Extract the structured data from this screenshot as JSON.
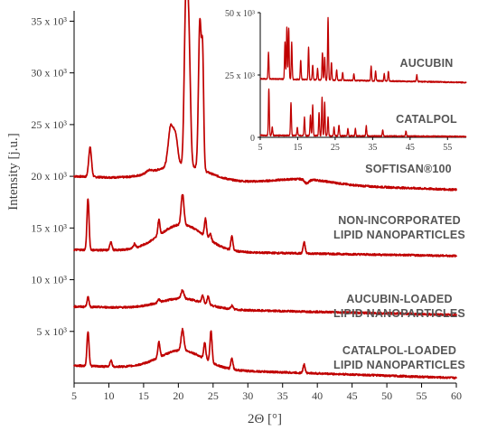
{
  "chart_data": [
    {
      "type": "line",
      "xlabel": "2Θ [°]",
      "ylabel": "Intensity [j.u.]",
      "xlim": [
        5,
        60
      ],
      "ylim": [
        0,
        36000
      ],
      "x_ticks": [
        "5",
        "10",
        "15",
        "20",
        "25",
        "30",
        "35",
        "40",
        "45",
        "50",
        "55",
        "60"
      ],
      "y_ticks": [
        "5 x 10³",
        "10 x 10³",
        "15 x 10³",
        "20 x 10³",
        "25 x 10³",
        "30 x 10³",
        "35 x 10³"
      ],
      "y_tick_values": [
        5000,
        10000,
        15000,
        20000,
        25000,
        30000,
        35000
      ],
      "color": "#c00000",
      "series": [
        {
          "name": "SOFTISAN®100",
          "label_lines": [
            "SOFTISAN®100"
          ],
          "baseline_start": 20000,
          "baseline_end": 18700,
          "peaks": [
            [
              7.3,
              22800,
              0.2
            ],
            [
              15.8,
              20600,
              0.4
            ],
            [
              18.9,
              24800,
              0.35
            ],
            [
              19.6,
              23800,
              0.3
            ],
            [
              21.0,
              32500,
              0.2
            ],
            [
              21.3,
              32900,
              0.2
            ],
            [
              21.6,
              29000,
              0.2
            ],
            [
              23.1,
              35000,
              0.2
            ],
            [
              23.5,
              31000,
              0.15
            ],
            [
              38.5,
              19300,
              0.3
            ]
          ],
          "humps": [
            [
              20.5,
              1500,
              3.5
            ],
            [
              38,
              500,
              4
            ]
          ]
        },
        {
          "name": "NON-INCORPORATED LIPID NANOPARTICLES",
          "label_lines": [
            "NON-INCORPORATED",
            "LIPID NANOPARTICLES"
          ],
          "baseline_start": 12900,
          "baseline_end": 12300,
          "peaks": [
            [
              7.0,
              17800,
              0.15
            ],
            [
              10.3,
              13700,
              0.15
            ],
            [
              13.7,
              13500,
              0.15
            ],
            [
              17.2,
              15800,
              0.15
            ],
            [
              20.6,
              18300,
              0.2
            ],
            [
              23.9,
              15900,
              0.15
            ],
            [
              24.6,
              14500,
              0.15
            ],
            [
              27.7,
              14200,
              0.15
            ],
            [
              38.1,
              13600,
              0.15
            ]
          ],
          "humps": [
            [
              20.5,
              2600,
              3.2
            ]
          ]
        },
        {
          "name": "AUCUBIN-LOADED LIPID NANOPARTICLES",
          "label_lines": [
            "AUCUBIN-LOADED",
            "LIPID NANOPARTICLES"
          ],
          "baseline_start": 7400,
          "baseline_end": 6600,
          "peaks": [
            [
              7.0,
              8300,
              0.15
            ],
            [
              17.2,
              8100,
              0.15
            ],
            [
              20.6,
              9000,
              0.2
            ],
            [
              23.5,
              8500,
              0.15
            ],
            [
              24.3,
              8400,
              0.15
            ],
            [
              27.7,
              7500,
              0.15
            ]
          ],
          "humps": [
            [
              20.5,
              1000,
              3.2
            ]
          ]
        },
        {
          "name": "CATALPOL-LOADED LIPID NANOPARTICLES",
          "label_lines": [
            "CATALPOL-LOADED",
            "LIPID NANOPARTICLES"
          ],
          "baseline_start": 1700,
          "baseline_end": 500,
          "peaks": [
            [
              7.0,
              5000,
              0.15
            ],
            [
              10.3,
              2200,
              0.15
            ],
            [
              17.2,
              4000,
              0.15
            ],
            [
              20.6,
              5200,
              0.2
            ],
            [
              23.8,
              3900,
              0.15
            ],
            [
              24.7,
              5000,
              0.15
            ],
            [
              27.7,
              2400,
              0.15
            ],
            [
              38.1,
              1800,
              0.15
            ]
          ],
          "humps": [
            [
              20.5,
              1800,
              3.2
            ]
          ]
        }
      ]
    },
    {
      "type": "line",
      "inset": true,
      "xlim": [
        5,
        60
      ],
      "ylim": [
        0,
        50000
      ],
      "x_ticks": [
        "5",
        "15",
        "25",
        "35",
        "45",
        "55"
      ],
      "y_ticks": [
        "0",
        "25 x 10³",
        "50 x 10³"
      ],
      "y_tick_values": [
        0,
        25000,
        50000
      ],
      "color": "#c00000",
      "series": [
        {
          "name": "AUCUBIN",
          "label_lines": [
            "AUCUBIN"
          ],
          "baseline_start": 23500,
          "baseline_end": 22000,
          "peaks": [
            [
              7.2,
              34000,
              0.12
            ],
            [
              11.6,
              38000,
              0.12
            ],
            [
              12.1,
              44000,
              0.12
            ],
            [
              12.6,
              44000,
              0.12
            ],
            [
              13.4,
              38000,
              0.12
            ],
            [
              15.8,
              31000,
              0.12
            ],
            [
              17.9,
              36000,
              0.12
            ],
            [
              19.0,
              29000,
              0.12
            ],
            [
              20.3,
              27500,
              0.12
            ],
            [
              21.6,
              34000,
              0.12
            ],
            [
              22.2,
              32000,
              0.12
            ],
            [
              23.1,
              48000,
              0.12
            ],
            [
              24.0,
              30000,
              0.12
            ],
            [
              25.4,
              27000,
              0.12
            ],
            [
              27.0,
              26000,
              0.12
            ],
            [
              30.0,
              25500,
              0.12
            ],
            [
              34.6,
              28500,
              0.12
            ],
            [
              35.8,
              26500,
              0.12
            ],
            [
              38.1,
              25500,
              0.12
            ],
            [
              39.2,
              26500,
              0.12
            ],
            [
              46.8,
              25000,
              0.12
            ]
          ],
          "humps": []
        },
        {
          "name": "CATALPOL",
          "label_lines": [
            "CATALPOL"
          ],
          "baseline_start": 800,
          "baseline_end": 300,
          "peaks": [
            [
              7.3,
              19500,
              0.12
            ],
            [
              8.2,
              4000,
              0.12
            ],
            [
              13.2,
              14000,
              0.12
            ],
            [
              14.9,
              4000,
              0.12
            ],
            [
              16.8,
              8000,
              0.12
            ],
            [
              18.4,
              9000,
              0.12
            ],
            [
              19.0,
              13000,
              0.12
            ],
            [
              20.7,
              10000,
              0.12
            ],
            [
              21.5,
              16000,
              0.12
            ],
            [
              22.2,
              14000,
              0.12
            ],
            [
              23.1,
              8000,
              0.12
            ],
            [
              24.7,
              4000,
              0.12
            ],
            [
              26.0,
              5000,
              0.12
            ],
            [
              28.4,
              3500,
              0.12
            ],
            [
              30.4,
              3500,
              0.12
            ],
            [
              33.3,
              4500,
              0.12
            ],
            [
              37.7,
              3000,
              0.12
            ],
            [
              43.9,
              2500,
              0.12
            ]
          ],
          "humps": []
        }
      ]
    }
  ]
}
